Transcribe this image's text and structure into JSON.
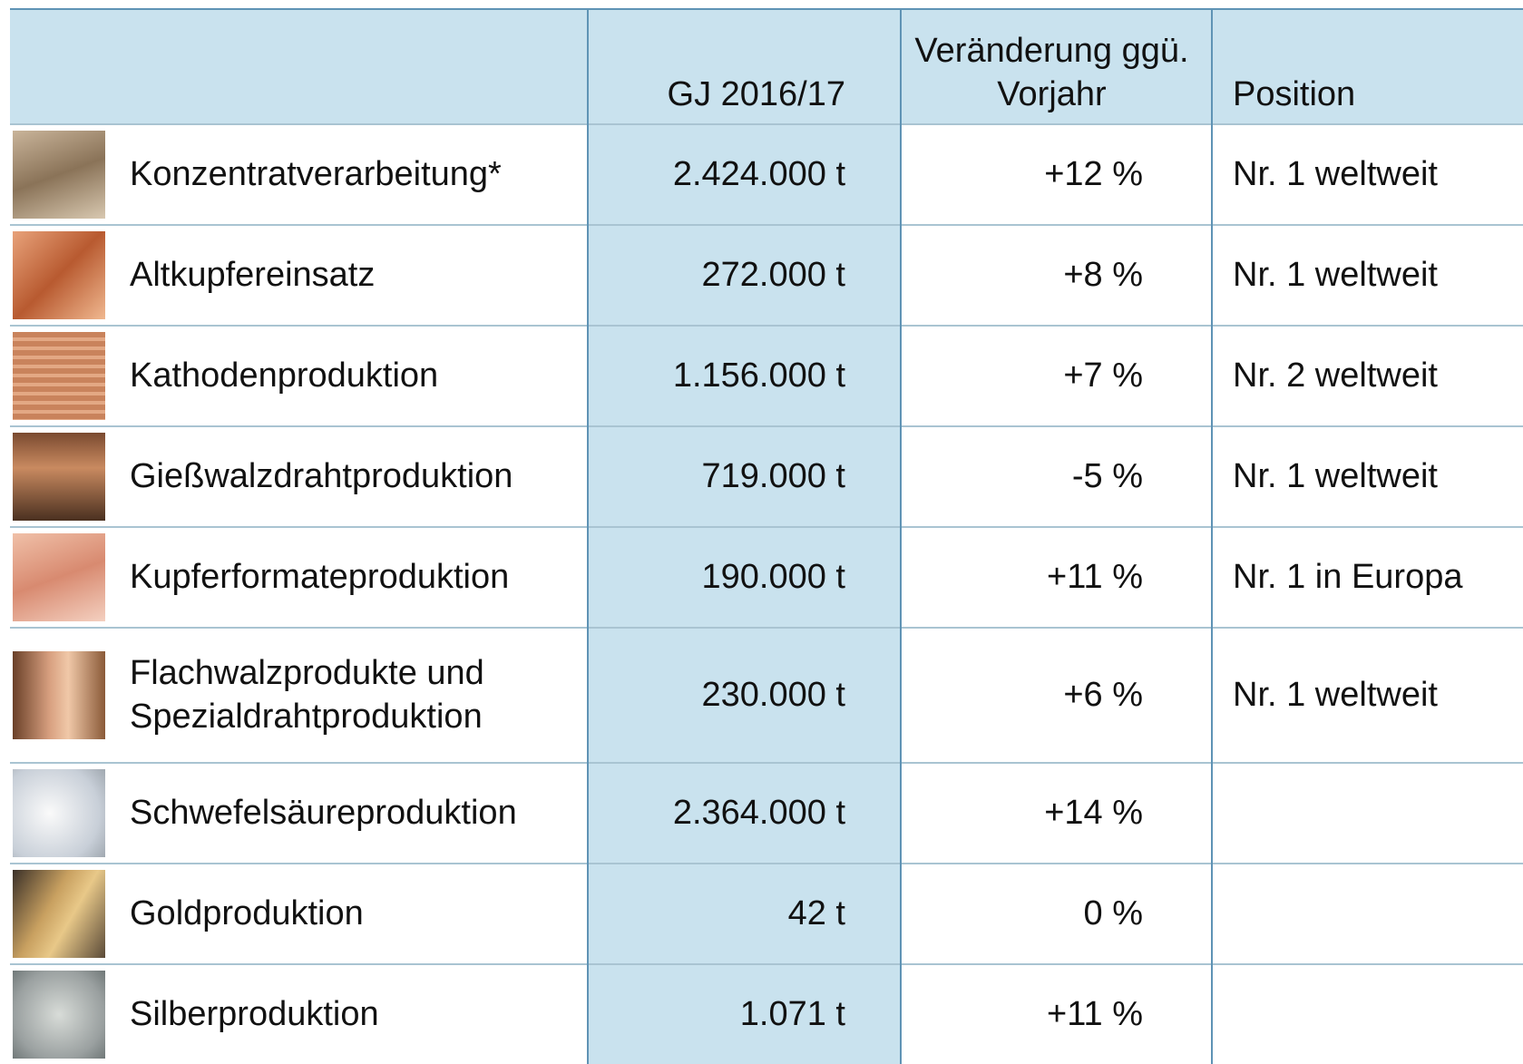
{
  "table": {
    "header": [
      "GJ 2016/17",
      "Veränderung ggü. Vorjahr",
      "Position"
    ],
    "rows": [
      {
        "name": "Konzentratverarbeitung*",
        "value": "2.424.000 t",
        "change": "+12 %",
        "position": "Nr. 1 weltweit"
      },
      {
        "name": "Altkupfereinsatz",
        "value": "272.000 t",
        "change": "+8 %",
        "position": "Nr. 1 weltweit"
      },
      {
        "name": "Kathodenproduktion",
        "value": "1.156.000 t",
        "change": "+7 %",
        "position": "Nr. 2 weltweit"
      },
      {
        "name": "Gießwalzdrahtproduktion",
        "value": "719.000 t",
        "change": "-5 %",
        "position": "Nr. 1 weltweit"
      },
      {
        "name": "Kupferformateproduktion",
        "value": "190.000 t",
        "change": "+11 %",
        "position": "Nr. 1 in Europa"
      },
      {
        "name": "Flachwalzprodukte und Spezialdrahtproduktion",
        "value": "230.000 t",
        "change": "+6 %",
        "position": "Nr. 1 weltweit"
      },
      {
        "name": "Schwefelsäureproduktion",
        "value": "2.364.000 t",
        "change": "+14 %"
      },
      {
        "name": "Goldproduktion",
        "value": "42 t",
        "change": "0 %"
      },
      {
        "name": "Silberproduktion",
        "value": "1.071 t",
        "change": "+11 %"
      }
    ]
  }
}
